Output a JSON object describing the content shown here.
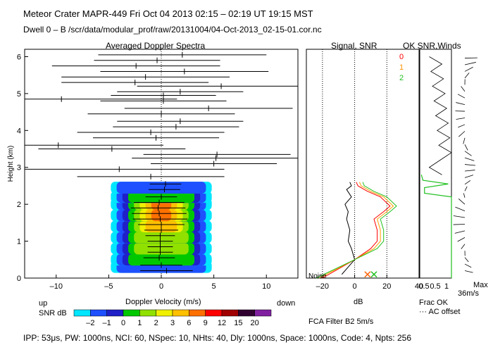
{
  "header": {
    "title_line": "Meteor Crater   MAPR-449   Fri Oct 04 2013 02:15 – 02:19 UT 19:15 MST",
    "dwell_line": "Dwell   0 –   B     /scr/data/modular_prof/raw/20131004/04-Oct-2013_02-15-01.cor.nc"
  },
  "footer": {
    "params_line": "IPP:  53μs,   PW: 1000ns,   NCI:  60,   NSpec: 10,  NHts: 40,   Dly: 1000ns,   Space: 1000ns,   Code: 4,   Npts: 256",
    "filter_label": "FCA Filter B2   5m/s",
    "max_label": "Max",
    "max_value": "36m/s",
    "frac_ok_label": "Frac OK",
    "ac_offset_label": "··· AC offset",
    "up_label": "up",
    "down_label": "down",
    "snr_db_label": "SNR dB"
  },
  "colorbar": {
    "ticks": [
      "–2",
      "–1",
      "0",
      "1",
      "2",
      "3",
      "6",
      "9",
      "12",
      "15",
      "20"
    ],
    "colors": [
      "#00e6ff",
      "#1e50ff",
      "#2020c8",
      "#00c800",
      "#90e000",
      "#f0f000",
      "#ffc000",
      "#ff7000",
      "#ff0000",
      "#a00000",
      "#300030",
      "#8020a0"
    ]
  },
  "chart_data": [
    {
      "type": "heatmap",
      "title": "Averaged Doppler Spectra",
      "xlabel": "Doppler Velocity (m/s)",
      "ylabel": "Height (km)",
      "xlim": [
        -13,
        13
      ],
      "ylim": [
        0,
        6.2
      ],
      "xticks": [
        "–10",
        "–5",
        "0",
        "5",
        "10"
      ],
      "yticks": [
        "0",
        "1",
        "2",
        "3",
        "4",
        "5",
        "6"
      ],
      "spectra": [
        {
          "height": 0.2,
          "mean": 0.5,
          "width": 2.5
        },
        {
          "height": 0.35,
          "mean": 0.0,
          "width": 2.0
        },
        {
          "height": 0.55,
          "mean": -0.2,
          "width": 1.5
        },
        {
          "height": 0.7,
          "mean": -0.1,
          "width": 1.2
        },
        {
          "height": 0.85,
          "mean": -0.1,
          "width": 1.2
        },
        {
          "height": 1.0,
          "mean": -0.1,
          "width": 1.2
        },
        {
          "height": 1.15,
          "mean": -0.1,
          "width": 1.4
        },
        {
          "height": 1.3,
          "mean": 0.0,
          "width": 1.6
        },
        {
          "height": 1.45,
          "mean": 0.0,
          "width": 2.2
        },
        {
          "height": 1.6,
          "mean": -0.1,
          "width": 2.6
        },
        {
          "height": 1.75,
          "mean": -0.2,
          "width": 2.6
        },
        {
          "height": 1.9,
          "mean": -0.3,
          "width": 2.6
        },
        {
          "height": 2.05,
          "mean": -0.2,
          "width": 2.4
        },
        {
          "height": 2.2,
          "mean": 0.0,
          "width": 1.5
        },
        {
          "height": 2.4,
          "mean": 0.3,
          "width": 1.5
        },
        {
          "height": 2.55,
          "mean": 0.4,
          "width": 1.5
        },
        {
          "height": 2.75,
          "mean": -1.0,
          "width": 7.0
        },
        {
          "height": 2.95,
          "mean": -4.0,
          "width": 10.0
        },
        {
          "height": 3.1,
          "mean": 5.0,
          "width": 6.0
        },
        {
          "height": 3.25,
          "mean": 5.2,
          "width": 8.0
        },
        {
          "height": 3.35,
          "mean": 5.3,
          "width": 7.0
        },
        {
          "height": 3.5,
          "mean": -4.7,
          "width": 7.0
        },
        {
          "height": 3.6,
          "mean": -9.8,
          "width": 10.0
        },
        {
          "height": 3.8,
          "mean": -0.5,
          "width": 6.0
        },
        {
          "height": 3.95,
          "mean": -1.0,
          "width": 7.0
        },
        {
          "height": 4.1,
          "mean": 1.4,
          "width": 6.0
        },
        {
          "height": 4.25,
          "mean": 1.8,
          "width": 6.0
        },
        {
          "height": 4.45,
          "mean": 0.0,
          "width": 7.0
        },
        {
          "height": 4.6,
          "mean": 4.5,
          "width": 8.0
        },
        {
          "height": 4.8,
          "mean": 0.2,
          "width": 6.0
        },
        {
          "height": 4.85,
          "mean": -9.5,
          "width": 11.0
        },
        {
          "height": 4.95,
          "mean": 0.2,
          "width": 5.0
        },
        {
          "height": 5.05,
          "mean": 1.8,
          "width": 6.0
        },
        {
          "height": 5.2,
          "mean": 5.7,
          "width": 8.0
        },
        {
          "height": 5.3,
          "mean": -2.5,
          "width": 7.0
        },
        {
          "height": 5.45,
          "mean": -1.5,
          "width": 8.0
        },
        {
          "height": 5.6,
          "mean": 2.2,
          "width": 8.0
        },
        {
          "height": 5.75,
          "mean": -2.4,
          "width": 8.0
        },
        {
          "height": 5.9,
          "mean": -0.4,
          "width": 6.0
        },
        {
          "height": 6.05,
          "mean": 2.0,
          "width": 8.0
        }
      ],
      "snr_blob": [
        {
          "height": 0.3,
          "level": 1
        },
        {
          "height": 0.5,
          "level": 3
        },
        {
          "height": 0.8,
          "level": 4
        },
        {
          "height": 1.1,
          "level": 4
        },
        {
          "height": 1.4,
          "level": 6
        },
        {
          "height": 1.7,
          "level": 7
        },
        {
          "height": 2.0,
          "level": 7
        },
        {
          "height": 2.2,
          "level": 3
        },
        {
          "height": 2.45,
          "level": 1
        }
      ]
    },
    {
      "type": "line",
      "title": "Signal, SNR",
      "xlabel": "dB",
      "xlim": [
        -30,
        40
      ],
      "xticks": [
        "–20",
        "0",
        "20",
        "40"
      ],
      "noise_label": "Noise",
      "series": [
        {
          "name": "Signal",
          "color": "#000000",
          "x": [
            -8,
            0,
            -2,
            -4,
            -3,
            -5,
            -4,
            -6,
            -2,
            -5,
            -2,
            -3
          ],
          "y": [
            0.1,
            0.5,
            0.8,
            1.0,
            1.3,
            1.6,
            1.8,
            2.0,
            2.2,
            2.4,
            2.5,
            2.6
          ]
        },
        {
          "name": "0",
          "color": "#ff0000",
          "x": [
            -20,
            0,
            10,
            14,
            14,
            12,
            18,
            22,
            16,
            8,
            2,
            1
          ],
          "y": [
            0.0,
            0.5,
            0.8,
            1.0,
            1.3,
            1.6,
            1.8,
            1.95,
            2.2,
            2.35,
            2.5,
            2.6
          ]
        },
        {
          "name": "1",
          "color": "#ffa000",
          "x": [
            -22,
            0,
            12,
            16,
            16,
            14,
            20,
            24,
            18,
            10,
            4,
            3
          ],
          "y": [
            0.0,
            0.5,
            0.8,
            1.0,
            1.3,
            1.6,
            1.8,
            1.95,
            2.2,
            2.35,
            2.5,
            2.6
          ]
        },
        {
          "name": "2",
          "color": "#20c020",
          "x": [
            -24,
            0,
            14,
            18,
            18,
            16,
            22,
            26,
            20,
            12,
            6,
            5
          ],
          "y": [
            0.0,
            0.5,
            0.8,
            1.0,
            1.3,
            1.6,
            1.8,
            1.95,
            2.2,
            2.35,
            2.5,
            2.6
          ]
        }
      ]
    },
    {
      "type": "line",
      "title": "OK SNR,Winds",
      "xlabel": "Frac OK",
      "xlim": [
        0,
        1
      ],
      "xticks": [
        "0.5",
        "0.5",
        "1"
      ],
      "legend": [
        "0",
        "1",
        "2"
      ],
      "legend_colors": [
        "#ff0000",
        "#ff9000",
        "#20c020"
      ],
      "series": [
        {
          "name": "Frac OK",
          "color": "#20c020",
          "x": [
            1,
            1,
            1,
            1,
            1,
            0.15,
            0.15,
            0.9,
            0.1,
            0.05
          ],
          "y": [
            0,
            1,
            1.5,
            2.0,
            2.2,
            2.3,
            2.45,
            2.55,
            2.65,
            2.8
          ]
        }
      ]
    }
  ]
}
